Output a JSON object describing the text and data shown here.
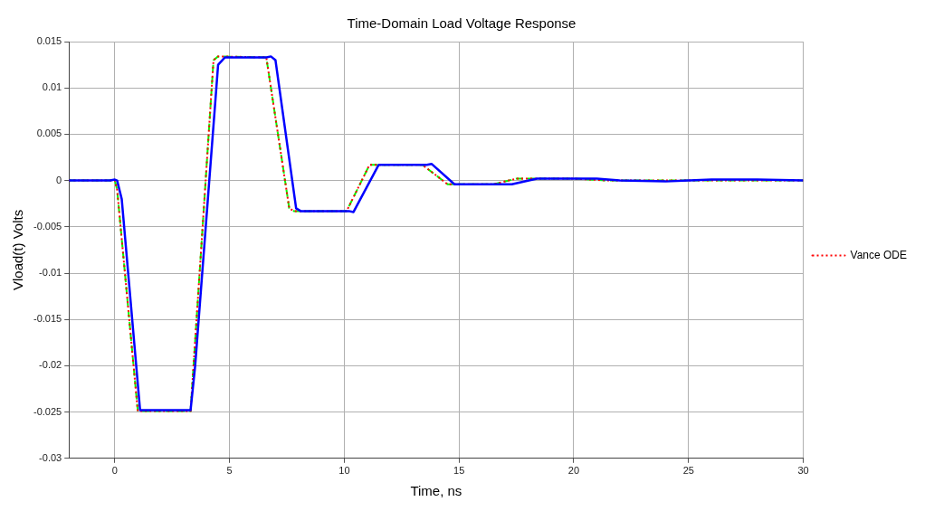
{
  "chart_data": {
    "type": "line",
    "title": "Time-Domain Load Voltage Response",
    "xlabel": "Time, ns",
    "ylabel": "Vload(t) Volts",
    "xlim": [
      -2,
      30
    ],
    "xticks": [
      0,
      5,
      10,
      15,
      20,
      25,
      30
    ],
    "ylim": [
      -0.03,
      0.015
    ],
    "yticks": [
      -0.03,
      -0.025,
      -0.02,
      -0.015,
      -0.01,
      -0.005,
      0,
      0.005,
      0.01,
      0.015
    ],
    "grid": true,
    "legend": "right",
    "marker": "none",
    "series": [
      {
        "color": "#0000ff",
        "line_style": "solid",
        "x": [
          -2,
          -0.2,
          0,
          0.1,
          0.3,
          1.1,
          3.3,
          3.5,
          4.5,
          4.8,
          6.6,
          6.8,
          7.0,
          7.9,
          8.1,
          10.2,
          10.4,
          11.5,
          13.6,
          13.8,
          14.8,
          17.3,
          18.4,
          21.0,
          22.0,
          24.0,
          25.0,
          26.0,
          28.0,
          30
        ],
        "values": [
          0,
          0,
          0.0001,
          0,
          -0.002,
          -0.0248,
          -0.0248,
          -0.02,
          0.0125,
          0.0133,
          0.0133,
          0.0134,
          0.013,
          -0.003,
          -0.0033,
          -0.0033,
          -0.0034,
          0.0017,
          0.0017,
          0.0018,
          -0.0004,
          -0.0004,
          0.0002,
          0.0002,
          0,
          -0.0001,
          0,
          0.0001,
          0.0001,
          0
        ]
      },
      {
        "name": "Vance ODE",
        "color": "#ff0000",
        "line_style": "dotted",
        "x": [
          -2,
          0,
          0.1,
          1.0,
          3.3,
          4.3,
          4.5,
          6.6,
          7.6,
          7.8,
          10.1,
          11.1,
          13.4,
          14.5,
          16.5,
          17.5,
          20.0,
          21.5,
          30
        ],
        "values": [
          0,
          0,
          -0.001,
          -0.0249,
          -0.0249,
          0.013,
          0.0134,
          0.0133,
          -0.003,
          -0.0033,
          -0.0033,
          0.0017,
          0.0017,
          -0.0004,
          -0.0004,
          0.0002,
          0.0002,
          0,
          0
        ]
      },
      {
        "color": "#00ff00",
        "line_style": "dashed",
        "x": [
          -2,
          0,
          0.1,
          1.0,
          3.3,
          4.3,
          4.5,
          6.6,
          7.6,
          7.8,
          10.1,
          11.1,
          13.4,
          14.5,
          16.5,
          17.5,
          20.0,
          21.5,
          30
        ],
        "values": [
          0,
          0,
          -0.001,
          -0.0249,
          -0.0249,
          0.013,
          0.0134,
          0.0133,
          -0.003,
          -0.0033,
          -0.0033,
          0.0017,
          0.0017,
          -0.0004,
          -0.0004,
          0.0002,
          0.0002,
          0,
          0
        ]
      }
    ]
  }
}
